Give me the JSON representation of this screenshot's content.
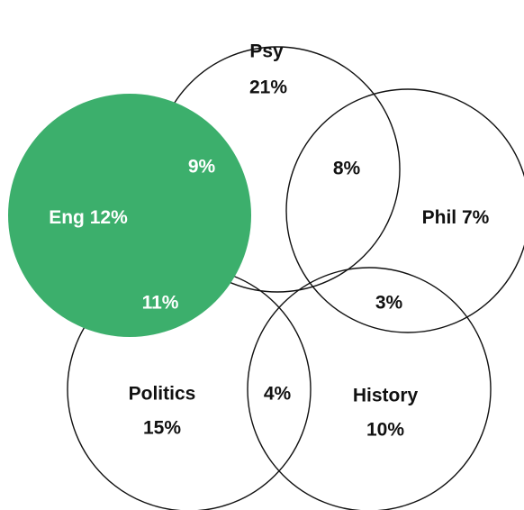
{
  "highlight_color": "#3caf6c",
  "subjects": {
    "psy": {
      "name": "Psy",
      "value": "21%"
    },
    "phil": {
      "name": "Phil",
      "value": "7%"
    },
    "eng": {
      "name": "Eng",
      "value": "12%"
    },
    "politics": {
      "name": "Politics",
      "value": "15%"
    },
    "history": {
      "name": "History",
      "value": "10%"
    }
  },
  "overlaps": {
    "eng_psy": "9%",
    "psy_phil": "8%",
    "eng_politics": "11%",
    "phil_history": "3%",
    "politics_history": "4%"
  }
}
